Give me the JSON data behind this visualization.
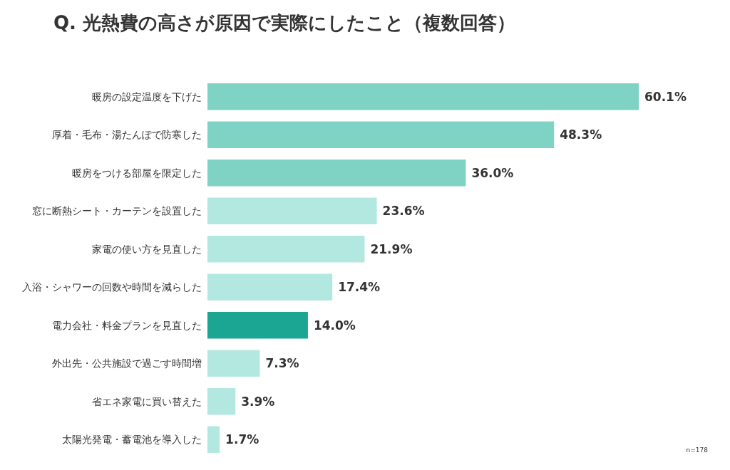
{
  "chart_data": {
    "type": "bar",
    "orientation": "horizontal",
    "title": "Q. 光熱費の高さが原因で実際にしたこと（複数回答）",
    "categories": [
      "暖房の設定温度を下げた",
      "厚着・毛布・湯たんぽで防寒した",
      "暖房をつける部屋を限定した",
      "窓に断熱シート・カーテンを設置した",
      "家電の使い方を見直した",
      "入浴・シャワーの回数や時間を減らした",
      "電力会社・料金プランを見直した",
      "外出先・公共施設で過ごす時間増",
      "省エネ家電に買い替えた",
      "太陽光発電・蓄電池を導入した"
    ],
    "values": [
      60.1,
      48.3,
      36.0,
      23.6,
      21.9,
      17.4,
      14.0,
      7.3,
      3.9,
      1.7
    ],
    "value_labels": [
      "60.1%",
      "48.3%",
      "36.0%",
      "23.6%",
      "21.9%",
      "17.4%",
      "14.0%",
      "7.3%",
      "3.9%",
      "1.7%"
    ],
    "colors": [
      "#7fd3c4",
      "#7fd3c4",
      "#7fd3c4",
      "#b3e8e0",
      "#b3e8e0",
      "#b3e8e0",
      "#1ba593",
      "#b3e8e0",
      "#b3e8e0",
      "#b3e8e0"
    ],
    "annotations": [
      "n=178"
    ]
  }
}
